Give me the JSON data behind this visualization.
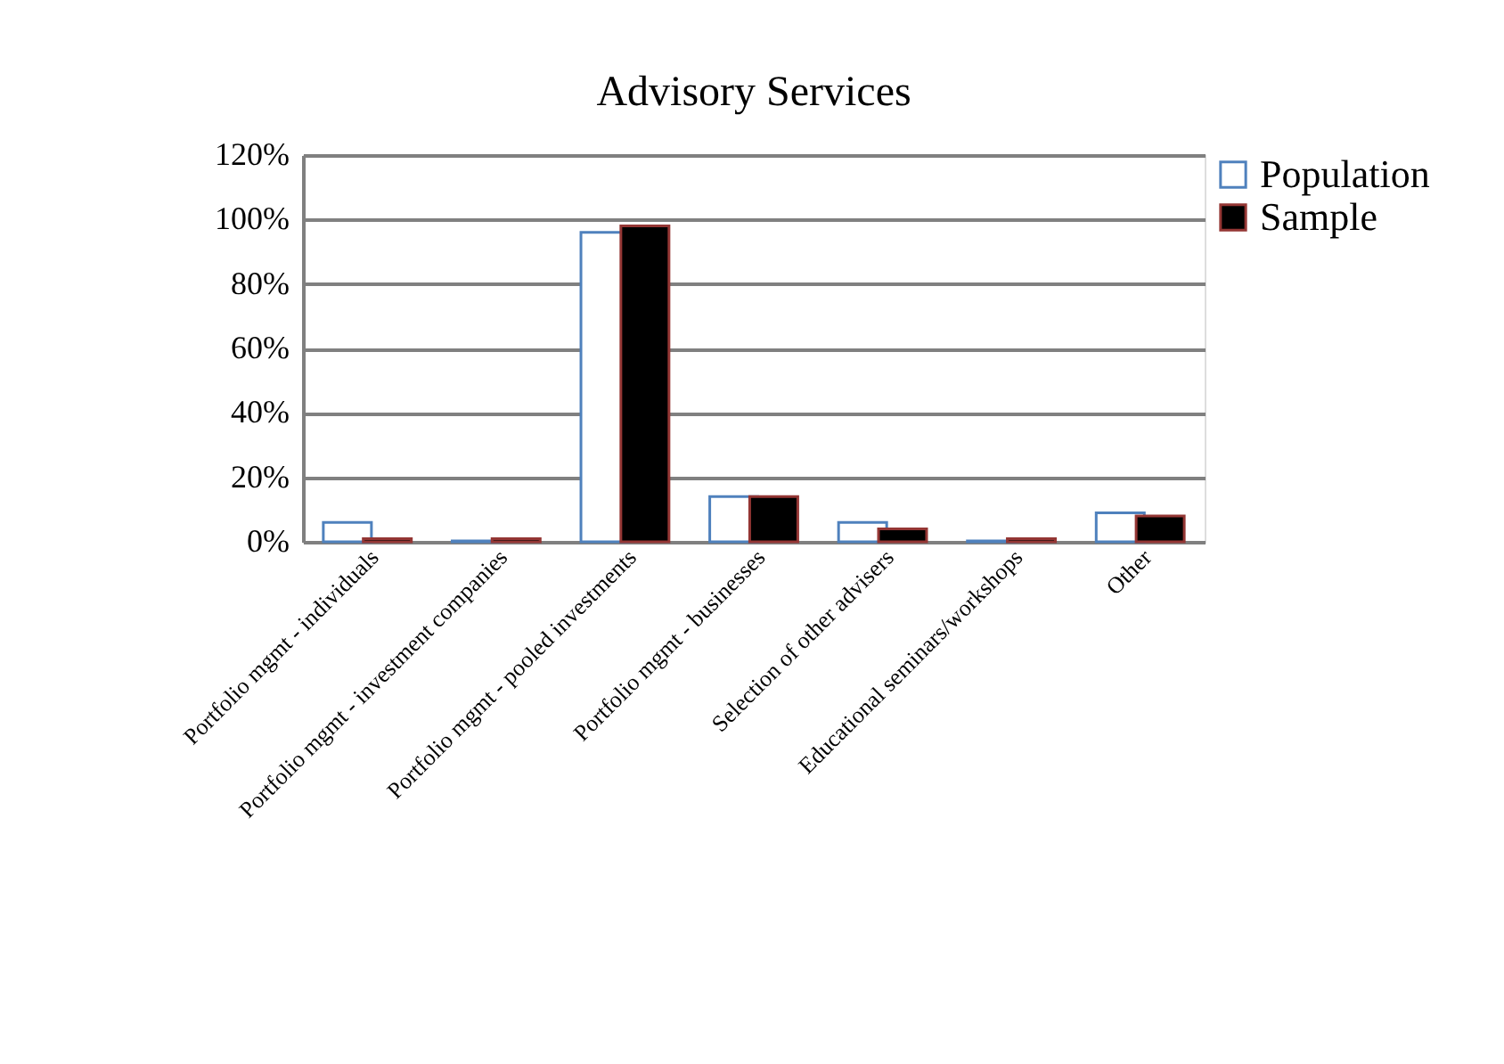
{
  "chart_data": {
    "type": "bar",
    "title": "Advisory Services",
    "categories": [
      "Portfolio mgmt - individuals",
      "Portfolio mgmt - investment companies",
      "Portfolio mgmt - pooled investments",
      "Portfolio mgmt - businesses",
      "Selection of other advisers",
      "Educational seminars/workshops",
      "Other"
    ],
    "series": [
      {
        "name": "Population",
        "color": "#ffffff",
        "values": [
          6,
          0.3,
          96,
          14,
          6,
          0.3,
          9
        ]
      },
      {
        "name": "Sample",
        "color": "#000000",
        "values": [
          1,
          1,
          98,
          14,
          4,
          1,
          8
        ]
      }
    ],
    "ylim": [
      0,
      120
    ],
    "yticks": [
      {
        "value": 0,
        "label": "0%"
      },
      {
        "value": 20,
        "label": "20%"
      },
      {
        "value": 40,
        "label": "40%"
      },
      {
        "value": 60,
        "label": "60%"
      },
      {
        "value": 80,
        "label": "80%"
      },
      {
        "value": 100,
        "label": "100%"
      },
      {
        "value": 120,
        "label": "120%"
      }
    ],
    "grid": "y",
    "legend": "right"
  }
}
